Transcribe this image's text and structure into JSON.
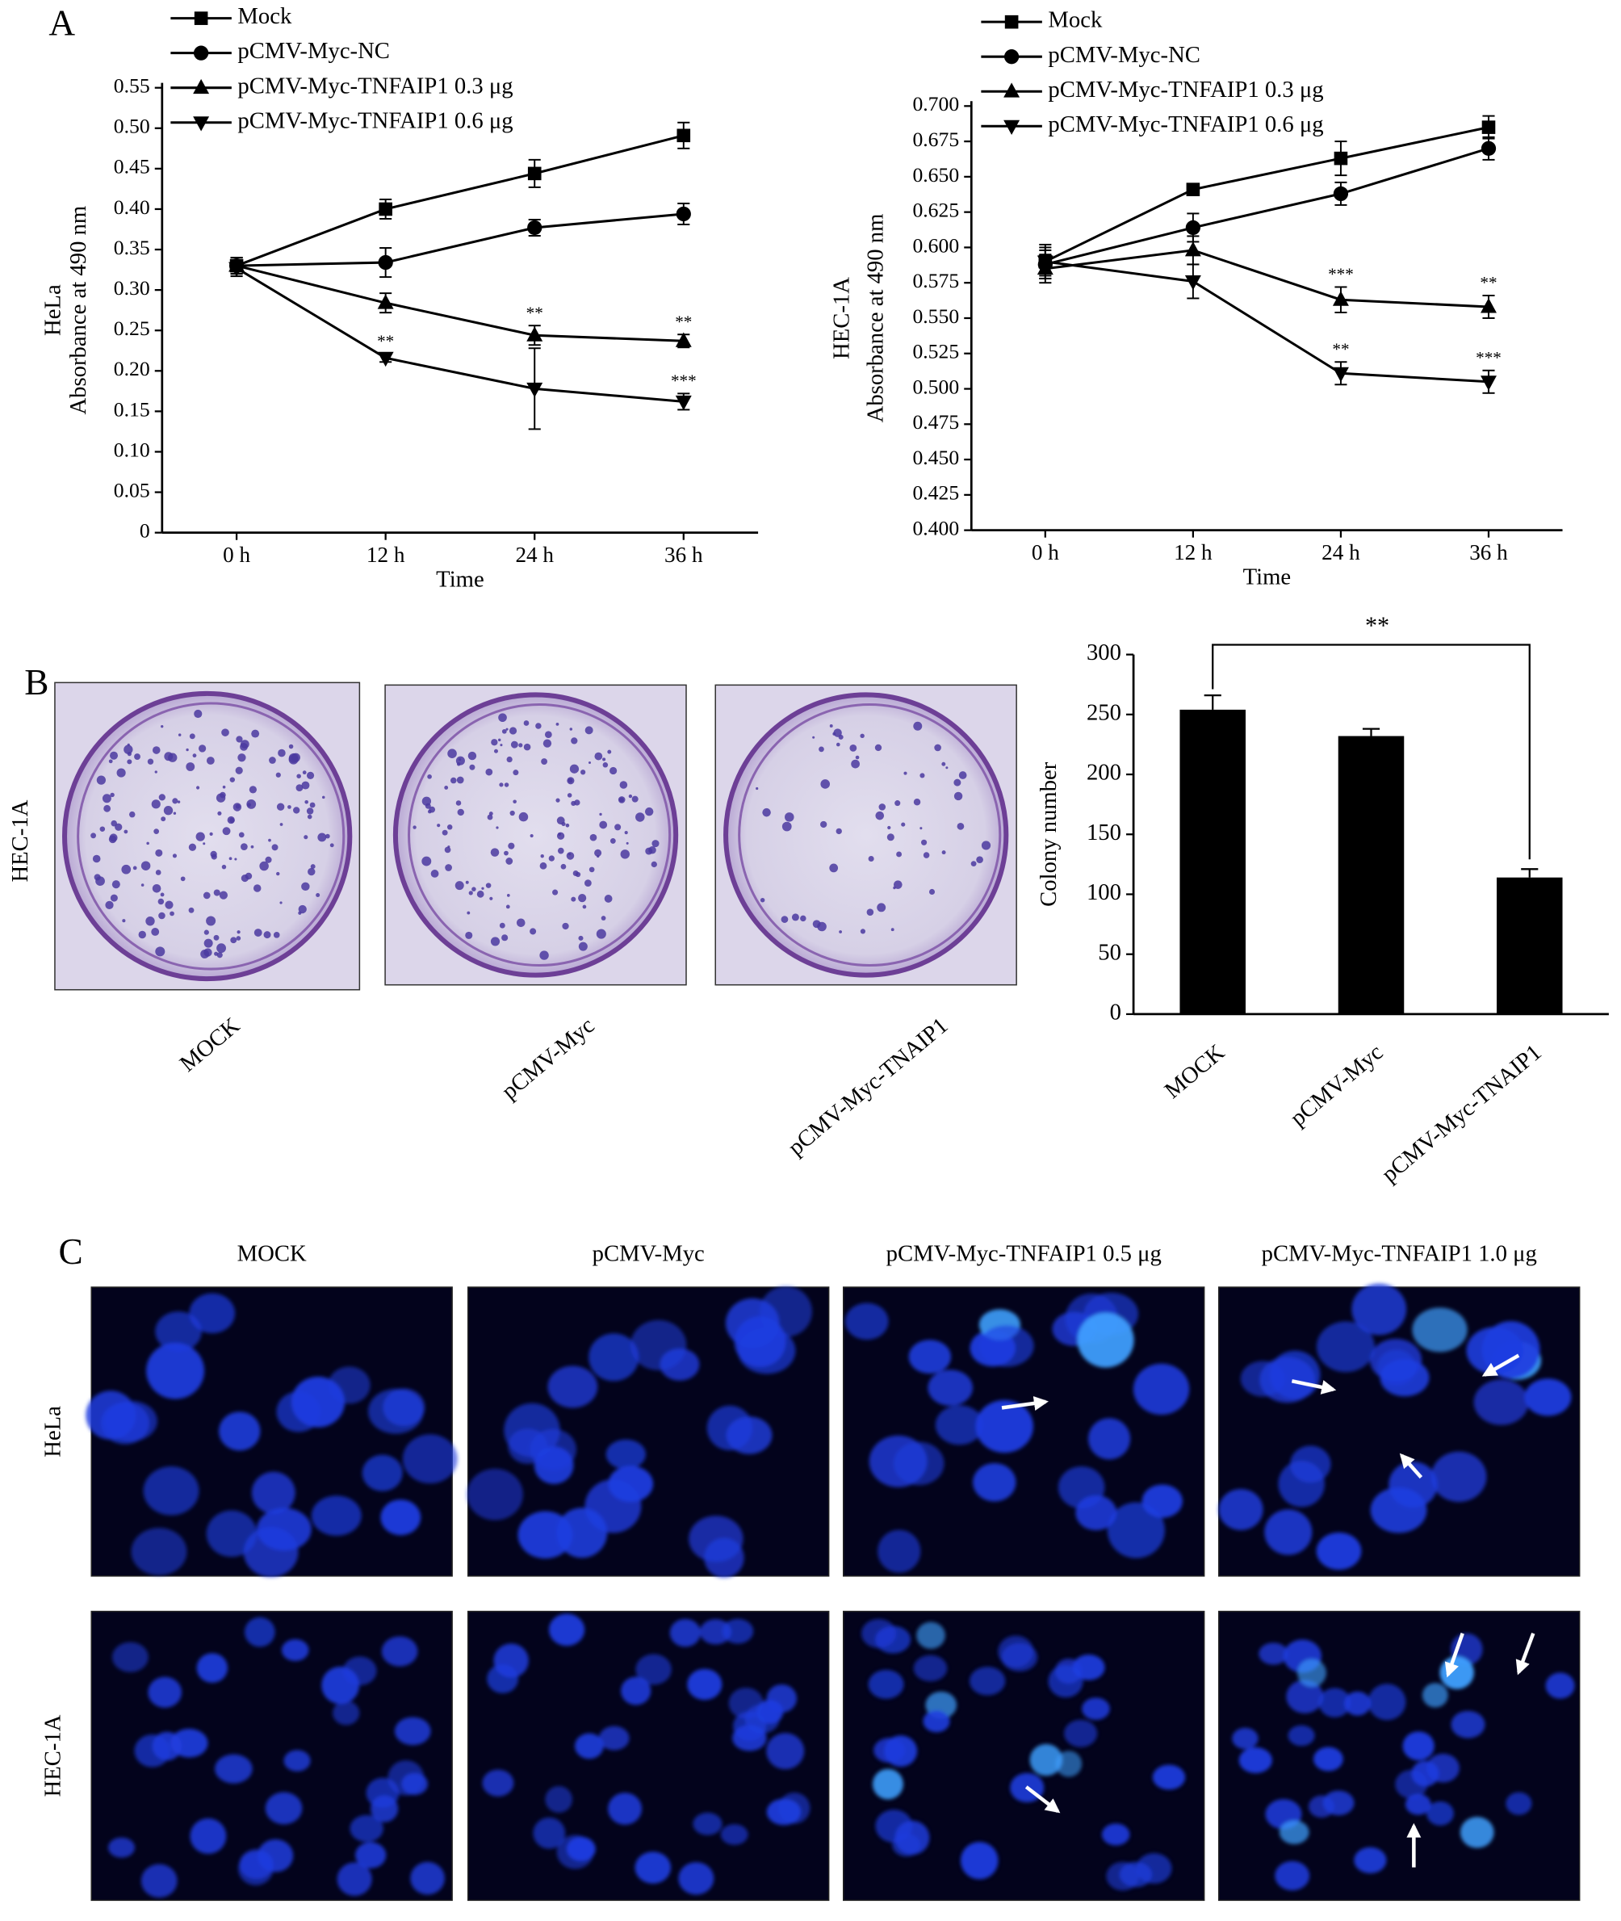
{
  "panel_labels": [
    "A",
    "B",
    "C"
  ],
  "chart_data": [
    {
      "type": "line",
      "cell_line": "HeLa",
      "ylabel": "Absorbance at 490 nm",
      "xlabel": "Time",
      "categories": [
        "0 h",
        "12 h",
        "24 h",
        "36 h"
      ],
      "ylim": [
        0,
        0.55
      ],
      "yticks": [
        0,
        0.05,
        {
          "value": 0.1,
          "label": "0.10"
        },
        0.15,
        {
          "value": 0.2,
          "label": "0.20"
        },
        0.25,
        {
          "value": 0.3,
          "label": "0.30"
        },
        0.35,
        {
          "value": 0.4,
          "label": "0.40"
        },
        0.45,
        {
          "value": 0.5,
          "label": "0.50"
        },
        0.55
      ],
      "series": [
        {
          "name": "Mock",
          "color": "#000000",
          "marker": "square",
          "values": [
            0.33,
            0.4,
            0.444,
            0.491
          ],
          "errors": [
            0.01,
            0.012,
            0.017,
            0.016
          ]
        },
        {
          "name": "pCMV-Myc-NC",
          "color": "#000000",
          "marker": "circle",
          "values": [
            0.33,
            0.334,
            0.377,
            0.394
          ],
          "errors": [
            0.01,
            0.018,
            0.01,
            0.013
          ]
        },
        {
          "name": "pCMV-Myc-TNFAIP1 0.3 μg",
          "color": "#000000",
          "marker": "triangle-up",
          "values": [
            0.33,
            0.284,
            0.244,
            0.237
          ],
          "errors": [
            0.01,
            0.012,
            0.012,
            0.008
          ],
          "significance": [
            null,
            null,
            "**",
            "**"
          ]
        },
        {
          "name": "pCMV-Myc-TNFAIP1 0.6 μg",
          "color": "#000000",
          "marker": "triangle-down",
          "values": [
            0.327,
            0.216,
            0.178,
            0.162
          ],
          "errors": [
            0.01,
            0.005,
            0.05,
            0.01
          ],
          "significance": [
            null,
            "**",
            null,
            "***"
          ]
        }
      ]
    },
    {
      "type": "line",
      "cell_line": "HEC-1A",
      "ylabel": "Absorbance at 490 nm",
      "xlabel": "Time",
      "categories": [
        "0 h",
        "12 h",
        "24 h",
        "36 h"
      ],
      "ylim": [
        0.4,
        0.7
      ],
      "yticks": [
        {
          "value": 0.4,
          "label": "0.400"
        },
        0.425,
        {
          "value": 0.45,
          "label": "0.450"
        },
        0.475,
        {
          "value": 0.5,
          "label": "0.500"
        },
        0.525,
        {
          "value": 0.55,
          "label": "0.550"
        },
        0.575,
        {
          "value": 0.6,
          "label": "0.600"
        },
        0.625,
        {
          "value": 0.65,
          "label": "0.650"
        },
        0.675,
        {
          "value": 0.7,
          "label": "0.700"
        }
      ],
      "series": [
        {
          "name": "Mock",
          "color": "#000000",
          "marker": "square",
          "values": [
            0.59,
            0.641,
            0.663,
            0.685
          ],
          "errors": [
            0.012,
            0.003,
            0.012,
            0.008
          ]
        },
        {
          "name": "pCMV-Myc-NC",
          "color": "#000000",
          "marker": "circle",
          "values": [
            0.588,
            0.614,
            0.638,
            0.67
          ],
          "errors": [
            0.01,
            0.01,
            0.008,
            0.008
          ]
        },
        {
          "name": "pCMV-Myc-TNFAIP1 0.3 μg",
          "color": "#000000",
          "marker": "triangle-up",
          "values": [
            0.585,
            0.598,
            0.563,
            0.558
          ],
          "errors": [
            0.01,
            0.01,
            0.009,
            0.008
          ],
          "significance": [
            null,
            null,
            "***",
            "**"
          ]
        },
        {
          "name": "pCMV-Myc-TNFAIP1 0.6 μg",
          "color": "#000000",
          "marker": "triangle-down",
          "values": [
            0.59,
            0.576,
            0.511,
            0.505
          ],
          "errors": [
            0.01,
            0.012,
            0.008,
            0.008
          ],
          "significance": [
            null,
            null,
            "**",
            "***"
          ]
        }
      ]
    },
    {
      "type": "bar",
      "ylabel": "Colony number",
      "categories": [
        "MOCK",
        "pCMV-Myc",
        "pCMV-Myc-TNAIP1"
      ],
      "values": [
        254,
        232,
        114
      ],
      "errors": [
        12,
        6,
        7
      ],
      "color": "#000000",
      "ylim": [
        0,
        300
      ],
      "yticks": [
        0,
        50,
        100,
        150,
        200,
        250,
        300
      ],
      "bracket_label": "**"
    }
  ],
  "colony_plates": {
    "row_label": "HEC-1A",
    "labels": [
      "MOCK",
      "pCMV-Myc",
      "pCMV-Myc-TNAIP1"
    ]
  },
  "fluorescence": {
    "columns": [
      "MOCK",
      "pCMV-Myc",
      "pCMV-Myc-TNFAIP1 0.5 μg",
      "pCMV-Myc-TNFAIP1 1.0 μg"
    ],
    "rows": [
      "HeLa",
      "HEC-1A"
    ]
  }
}
